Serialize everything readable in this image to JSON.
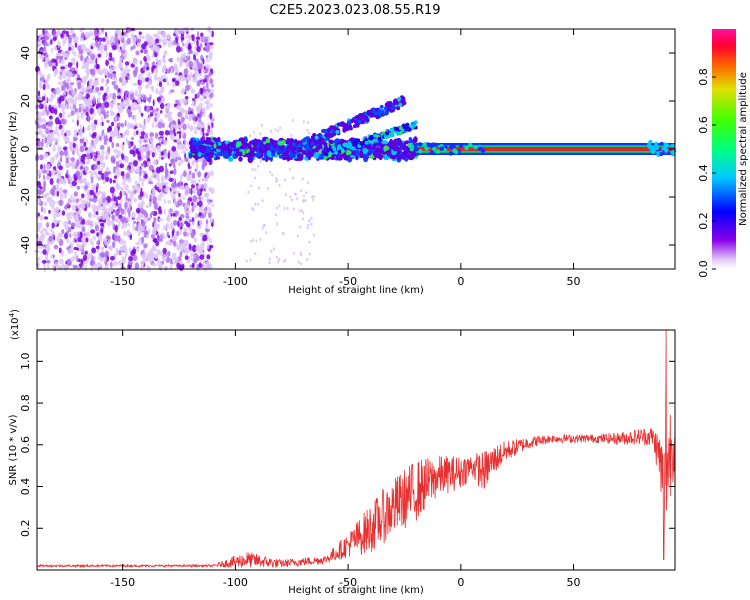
{
  "figure": {
    "title": "C2E5.2023.023.08.55.R19"
  },
  "chart_data": [
    {
      "type": "heatmap",
      "title": "C2E5.2023.023.08.55.R19",
      "xlabel": "Height of straight line (km)",
      "ylabel": "Frequency (Hz)",
      "xlim": [
        -188,
        95
      ],
      "ylim": [
        -50,
        50
      ],
      "x_ticks": [
        -150,
        -100,
        -50,
        0,
        50
      ],
      "y_ticks": [
        -40,
        -20,
        0,
        20,
        40
      ],
      "colorbar": {
        "label": "Normalized spectral amplitude",
        "range": [
          0,
          1
        ],
        "ticks": [
          0.0,
          0.2,
          0.4,
          0.6,
          0.8
        ]
      },
      "features": {
        "scattered_noise_x_range": [
          -188,
          -110
        ],
        "signal_band_x_range": [
          -120,
          95
        ],
        "signal_center_freq": 0,
        "strong_carrier_x_range": [
          -20,
          95
        ],
        "branch_upper_end": {
          "x": -25,
          "y": 20
        },
        "branch_lower_start": {
          "x": -25,
          "y": 10
        }
      }
    },
    {
      "type": "line",
      "xlabel": "Height of straight line (km)",
      "ylabel": "SNR (10 * v/v)",
      "y_multiplier": "(x10",
      "y_multiplier_exp": "4",
      "y_multiplier_close": ")",
      "xlim": [
        -188,
        95
      ],
      "ylim": [
        0,
        1.15
      ],
      "x_ticks": [
        -150,
        -100,
        -50,
        0,
        50
      ],
      "y_ticks": [
        0.2,
        0.4,
        0.6,
        0.8,
        1.0
      ],
      "line_color": "#e83030",
      "envelope": {
        "x": [
          -188,
          -110,
          -100,
          -95,
          -80,
          -60,
          -50,
          -40,
          -30,
          -20,
          -10,
          0,
          5,
          10,
          15,
          20,
          30,
          40,
          50,
          60,
          70,
          80,
          85,
          88,
          90,
          93,
          95
        ],
        "mean": [
          0.02,
          0.02,
          0.04,
          0.05,
          0.03,
          0.05,
          0.12,
          0.2,
          0.3,
          0.38,
          0.45,
          0.47,
          0.5,
          0.47,
          0.53,
          0.57,
          0.61,
          0.63,
          0.63,
          0.63,
          0.63,
          0.64,
          0.64,
          0.55,
          0.4,
          0.58,
          0.62
        ],
        "amp": [
          0.005,
          0.005,
          0.03,
          0.04,
          0.02,
          0.02,
          0.06,
          0.12,
          0.14,
          0.15,
          0.1,
          0.08,
          0.06,
          0.1,
          0.07,
          0.05,
          0.03,
          0.02,
          0.02,
          0.02,
          0.03,
          0.04,
          0.05,
          0.12,
          0.25,
          0.25,
          0.12
        ]
      },
      "peaks": [
        {
          "x": 91,
          "y": 1.15
        },
        {
          "x": 90,
          "y": 0.05
        }
      ]
    }
  ]
}
